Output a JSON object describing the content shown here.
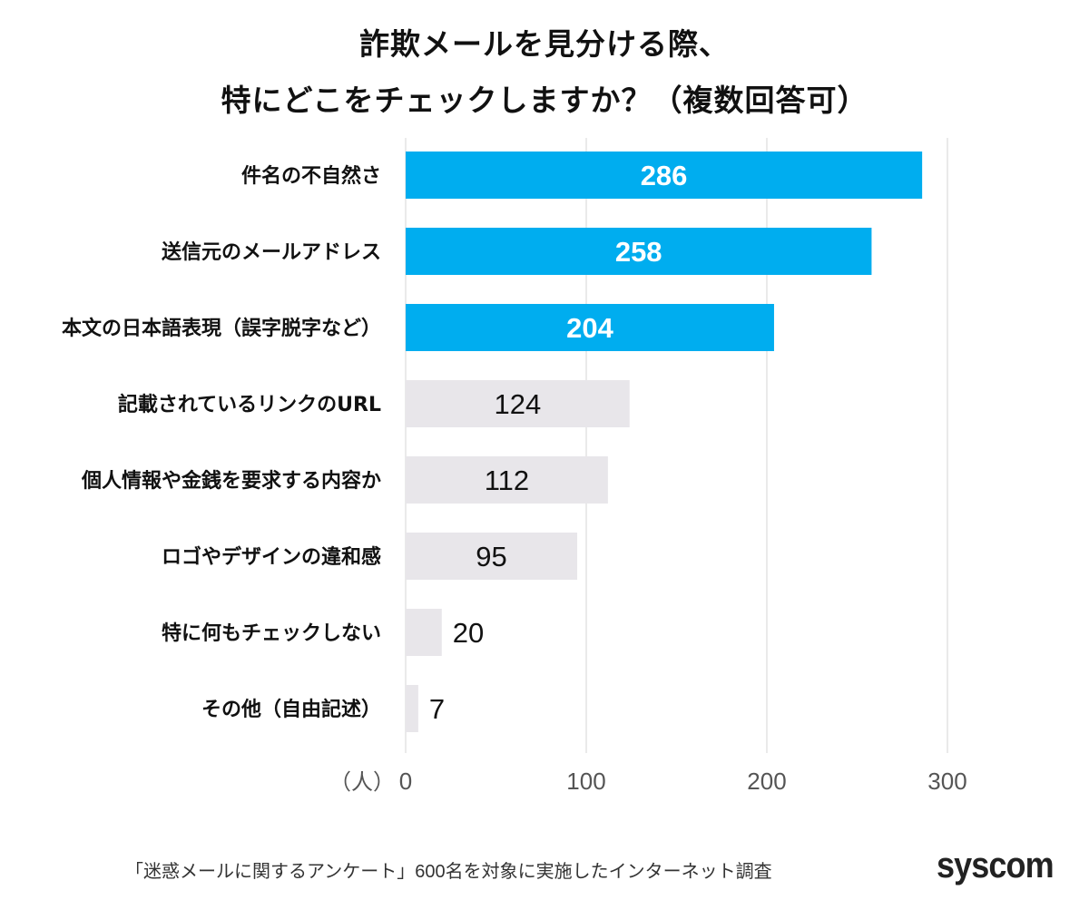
{
  "chart_data": {
    "type": "bar",
    "orientation": "horizontal",
    "title_lines": [
      "詐欺メールを見分ける際、",
      "特にどこをチェックしますか？（複数回答可）"
    ],
    "categories": [
      "件名の不自然さ",
      "送信元のメールアドレス",
      "本文の日本語表現（誤字脱字など）",
      "記載されているリンクのURL",
      "個人情報や金銭を要求する内容か",
      "ロゴやデザインの違和感",
      "特に何もチェックしない",
      "その他（自由記述）"
    ],
    "values": [
      286,
      258,
      204,
      124,
      112,
      95,
      20,
      7
    ],
    "highlight_top_n": 3,
    "xlabel": "（人）",
    "xlim": [
      0,
      300
    ],
    "xticks": [
      0,
      100,
      200,
      300
    ],
    "grid": true,
    "colors": {
      "highlight": "#00adef",
      "normal": "#e8e6ea",
      "grid": "#e4e4e4"
    }
  },
  "footer": {
    "source": "「迷惑メールに関するアンケート」600名を対象に実施したインターネット調査",
    "logo": "syscom"
  }
}
